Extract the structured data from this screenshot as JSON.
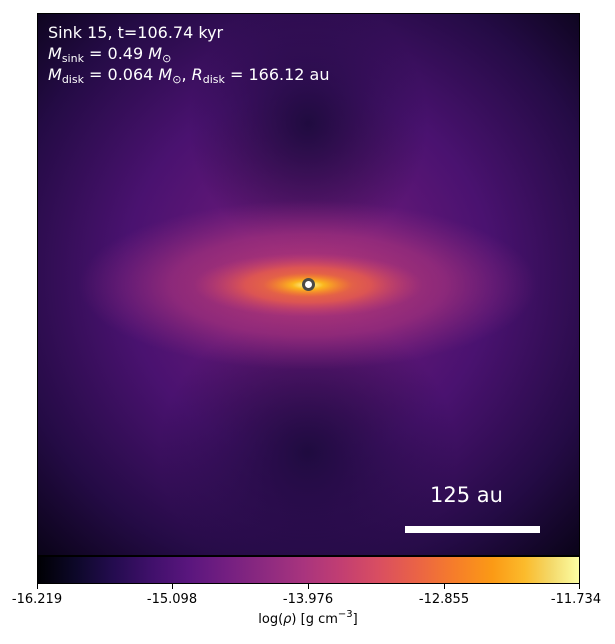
{
  "annotations": {
    "title": "Sink 15, t=106.74 kyr",
    "sink_mass": {
      "symbol": "M",
      "sub": "sink",
      "value": " = 0.49 ",
      "unit": "M",
      "unit_sub": "⊙"
    },
    "disk": {
      "mass_symbol": "M",
      "mass_sub": "disk",
      "mass_value": " = 0.064 ",
      "mass_unit": "M",
      "mass_unit_sub": "⊙",
      "separator": ", ",
      "radius_symbol": "R",
      "radius_sub": "disk",
      "radius_value": " = 166.12 au"
    }
  },
  "scale_bar": {
    "label": "125 au",
    "length_au": 125
  },
  "colorbar": {
    "label_prefix": "log(",
    "label_symbol": "ρ",
    "label_mid": ") [g cm",
    "label_exp": "−3",
    "label_suffix": "]",
    "colormap": "inferno",
    "min": -16.219,
    "max": -11.734,
    "ticks": [
      "-16.219",
      "-15.098",
      "-13.976",
      "-12.855",
      "-11.734"
    ]
  },
  "icons": {
    "sink": "sink-marker-icon"
  }
}
